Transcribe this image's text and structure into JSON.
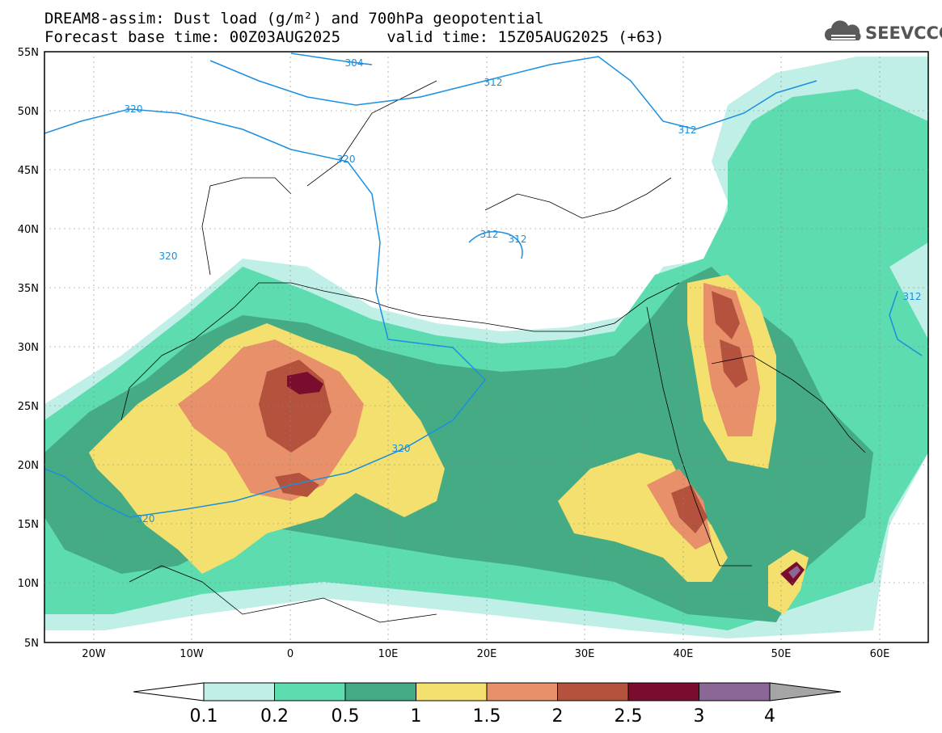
{
  "title": {
    "line1": "DREAM8-assim: Dust load (g/m²) and 700hPa geopotential",
    "line2": "Forecast base time: 00Z03AUG2025     valid time: 15Z05AUG2025 (+63)"
  },
  "logo": {
    "text": "SEEVCCC",
    "icon": "cloud-icon"
  },
  "map": {
    "lon_range": [
      -25,
      65
    ],
    "lat_range": [
      5,
      55
    ],
    "lat_ticks": [
      "55N",
      "50N",
      "45N",
      "40N",
      "35N",
      "30N",
      "25N",
      "20N",
      "15N",
      "10N",
      "5N"
    ],
    "lon_ticks": [
      "20W",
      "10W",
      "0",
      "10E",
      "20E",
      "30E",
      "40E",
      "50E",
      "60E"
    ],
    "contour_labels": [
      "304",
      "312",
      "320",
      "312",
      "320",
      "320",
      "320",
      "320",
      "312",
      "312",
      "312"
    ]
  },
  "colorbar": {
    "labels": [
      "0.1",
      "0.2",
      "0.5",
      "1",
      "1.5",
      "2",
      "2.5",
      "3",
      "4"
    ],
    "colors": [
      "#bfefe6",
      "#5ddcb0",
      "#45ab85",
      "#f4e06e",
      "#e8906a",
      "#b5523e",
      "#7a0c2d",
      "#8a6797"
    ],
    "under_color": "#ffffff",
    "over_color": "#a5a5a5"
  }
}
